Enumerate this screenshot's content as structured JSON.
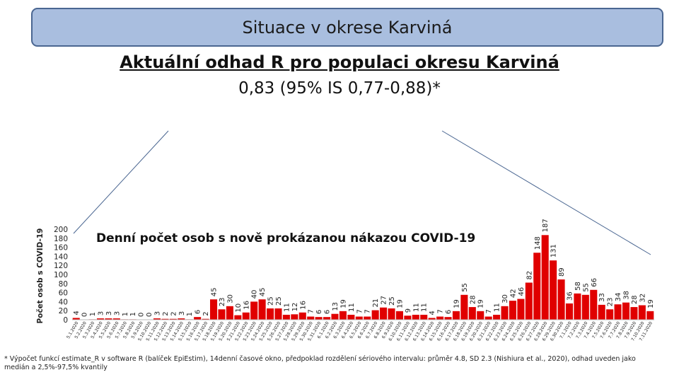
{
  "header": {
    "banner_title": "Situace v okrese Karviná",
    "title": "Aktuální odhad R pro populaci okresu Karviná",
    "subtitle": "0,83 (95% IS 0,77-0,88)*"
  },
  "footnote": "* Výpočet funkcí estimate_R v software R (balíček EpiEstim), 14denní časové okno, předpoklad rozdělení sériového intervalu: průměr 4.8, SD 2.3 (Nishiura et al., 2020), odhad uveden jako medián a 2,5%-97,5% kvantily",
  "chart_data": {
    "type": "bar",
    "title": "Denní počet osob s nově prokázanou nákazou COVID-19",
    "ylabel": "Počet osob s COVID-19",
    "xlabel": "",
    "ylim": [
      0,
      200
    ],
    "yticks": [
      0,
      20,
      40,
      60,
      80,
      100,
      120,
      140,
      160,
      180,
      200
    ],
    "grid": false,
    "bar_color": "#e00000",
    "categories": [
      "5.1.2020",
      "5.2.2020",
      "5.3.2020",
      "5.4.2020",
      "5.5.2020",
      "5.6.2020",
      "5.7.2020",
      "5.8.2020",
      "5.9.2020",
      "5.10.2020",
      "5.11.2020",
      "5.12.2020",
      "5.13.2020",
      "5.14.2020",
      "5.15.2020",
      "5.16.2020",
      "5.17.2020",
      "5.18.2020",
      "5.19.2020",
      "5.20.2020",
      "5.21.2020",
      "5.22.2020",
      "5.23.2020",
      "5.24.2020",
      "5.25.2020",
      "5.26.2020",
      "5.27.2020",
      "5.28.2020",
      "5.29.2020",
      "5.30.2020",
      "5.31.2020",
      "6.1.2020",
      "6.2.2020",
      "6.3.2020",
      "6.4.2020",
      "6.5.2020",
      "6.6.2020",
      "6.7.2020",
      "6.8.2020",
      "6.9.2020",
      "6.10.2020",
      "6.11.2020",
      "6.12.2020",
      "6.13.2020",
      "6.14.2020",
      "6.15.2020",
      "6.16.2020",
      "6.17.2020",
      "6.18.2020",
      "6.19.2020",
      "6.20.2020",
      "6.21.2020",
      "6.22.2020",
      "6.23.2020",
      "6.24.2020",
      "6.25.2020",
      "6.26.2020",
      "6.27.2020",
      "6.28.2020",
      "6.29.2020",
      "6.30.2020",
      "7.1.2020",
      "7.2.2020",
      "7.3.2020",
      "7.4.2020",
      "7.5.2020",
      "7.6.2020",
      "7.7.2020",
      "7.8.2020",
      "7.9.2020",
      "7.10.2020",
      "7.11.2020"
    ],
    "values": [
      4,
      0,
      1,
      3,
      3,
      3,
      1,
      1,
      0,
      0,
      3,
      2,
      2,
      3,
      1,
      6,
      2,
      45,
      23,
      30,
      10,
      16,
      40,
      45,
      25,
      25,
      11,
      12,
      16,
      7,
      6,
      6,
      13,
      19,
      11,
      7,
      7,
      21,
      27,
      25,
      19,
      9,
      11,
      11,
      4,
      7,
      6,
      19,
      55,
      28,
      19,
      7,
      11,
      30,
      42,
      46,
      82,
      148,
      187,
      131,
      89,
      36,
      58,
      55,
      66,
      33,
      23,
      34,
      38,
      28,
      32,
      19
    ]
  }
}
